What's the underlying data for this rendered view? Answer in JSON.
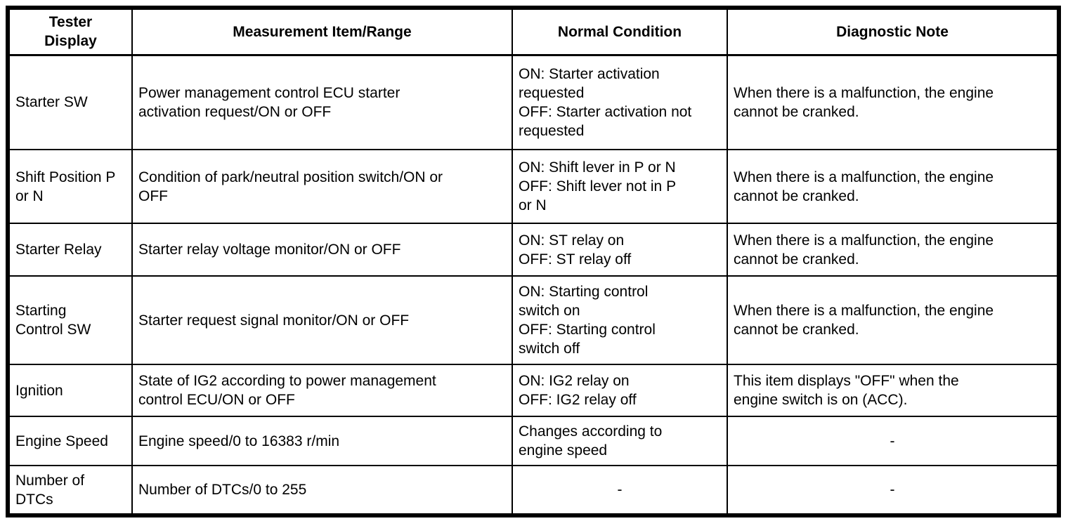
{
  "table": {
    "headers": {
      "tester": "Tester\nDisplay",
      "item": "Measurement Item/Range",
      "condition": "Normal Condition",
      "note": "Diagnostic Note"
    },
    "rows": [
      {
        "tester": "Starter SW",
        "item": "Power management control ECU starter\nactivation request/ON or OFF",
        "condition": "ON: Starter activation\nrequested\nOFF: Starter activation not\nrequested",
        "note": "When there is a malfunction, the engine\ncannot be cranked."
      },
      {
        "tester": "Shift Position P\nor N",
        "item": "Condition of park/neutral position switch/ON or\nOFF",
        "condition": "ON: Shift lever in P or N\nOFF: Shift lever not in P\nor N",
        "note": "When there is a malfunction, the engine\ncannot be cranked."
      },
      {
        "tester": "Starter Relay",
        "item": "Starter relay voltage monitor/ON or OFF",
        "condition": "ON: ST relay on\nOFF: ST relay off",
        "note": "When there is a malfunction, the engine\ncannot be cranked."
      },
      {
        "tester": "Starting\nControl SW",
        "item": "Starter request signal monitor/ON or OFF",
        "condition": "ON: Starting control\nswitch on\nOFF: Starting control\nswitch off",
        "note": "When there is a malfunction, the engine\ncannot be cranked."
      },
      {
        "tester": "Ignition",
        "item": "State of IG2 according to power management\ncontrol ECU/ON or OFF",
        "condition": "ON: IG2 relay on\nOFF: IG2 relay off",
        "note": "This item displays \"OFF\" when the\nengine switch is on (ACC)."
      },
      {
        "tester": "Engine Speed",
        "item": "Engine speed/0 to 16383 r/min",
        "condition": "Changes according to\nengine speed",
        "note": "-"
      },
      {
        "tester": "Number of\nDTCs",
        "item": "Number of DTCs/0 to 255",
        "condition": "-",
        "note": "-"
      }
    ]
  }
}
